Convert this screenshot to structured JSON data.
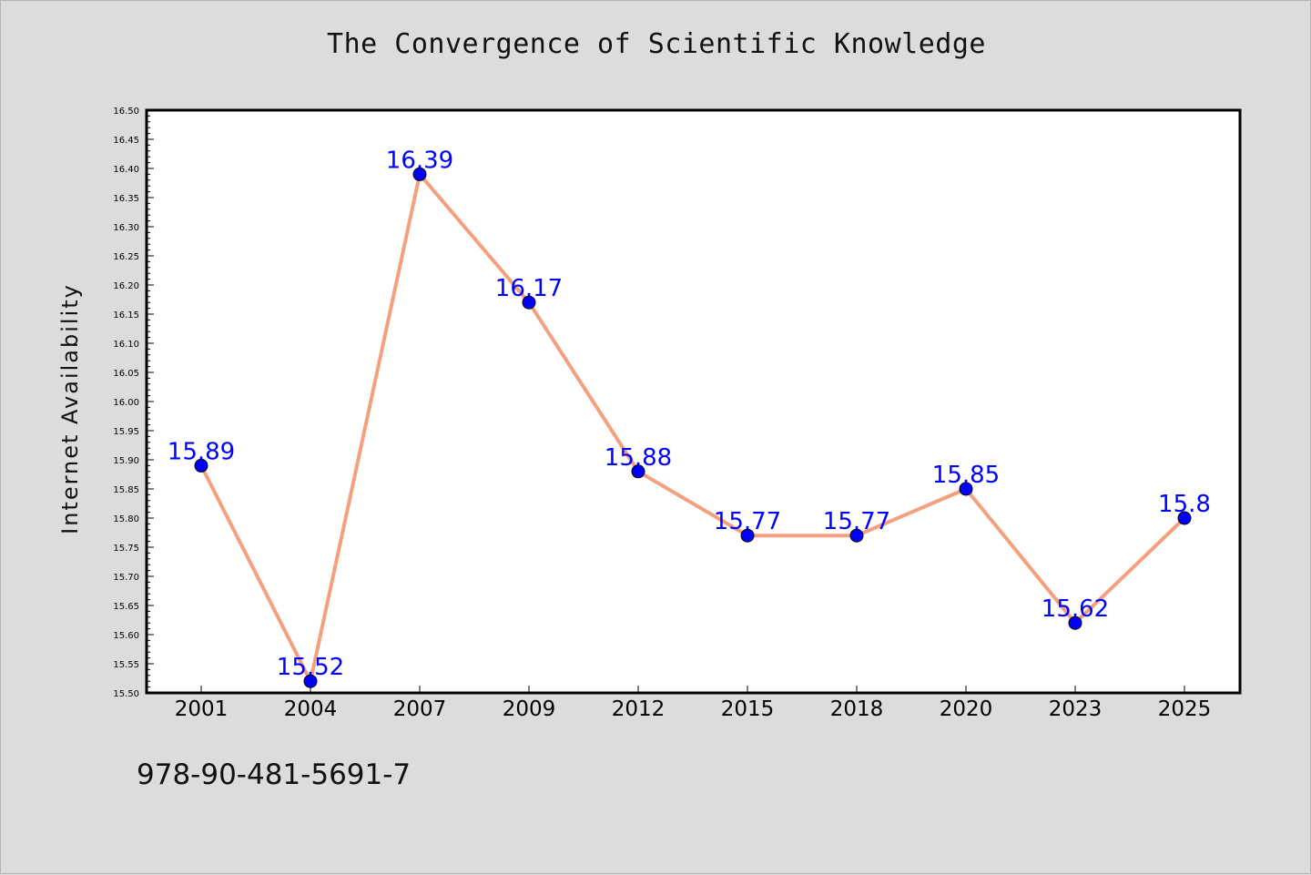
{
  "chart_data": {
    "type": "line",
    "title": "The Convergence of Scientific Knowledge",
    "xlabel": "",
    "ylabel": "Internet Availability",
    "categories": [
      "2001",
      "2004",
      "2007",
      "2009",
      "2012",
      "2015",
      "2018",
      "2020",
      "2023",
      "2025"
    ],
    "series": [
      {
        "values": [
          15.89,
          15.52,
          16.39,
          16.17,
          15.88,
          15.77,
          15.77,
          15.85,
          15.62,
          15.8
        ],
        "labels": [
          "15.89",
          "15.52",
          "16.39",
          "16.17",
          "15.88",
          "15.77",
          "15.77",
          "15.85",
          "15.62",
          "15.8"
        ]
      }
    ],
    "ylim": [
      15.5,
      16.5
    ],
    "yticks": [
      "15.50",
      "15.55",
      "15.60",
      "15.65",
      "15.70",
      "15.75",
      "15.80",
      "15.85",
      "15.90",
      "15.95",
      "16.00",
      "16.05",
      "16.10",
      "16.15",
      "16.20",
      "16.25",
      "16.30",
      "16.35",
      "16.40",
      "16.45",
      "16.50"
    ],
    "grid": false,
    "legend": "none",
    "colors": {
      "line": "#f4a07e",
      "marker": "#0000ff",
      "data_label": "#0000ff",
      "background": "#dcdcdc",
      "plot_background": "#ffffff"
    }
  },
  "footer": {
    "isbn": "978-90-481-5691-7"
  }
}
